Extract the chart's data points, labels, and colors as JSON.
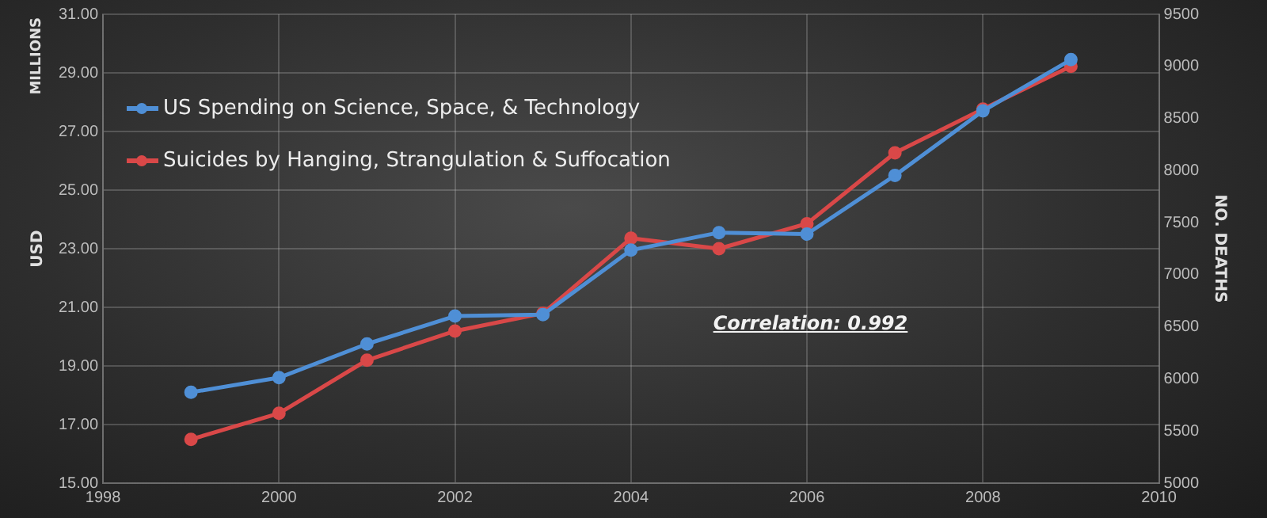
{
  "chart_data": {
    "type": "line",
    "ylabel": "USD",
    "y2label": "NO. DEATHS",
    "annotations": [
      "MILLIONS",
      "Correlation: 0.992"
    ],
    "x": [
      1999,
      2000,
      2001,
      2002,
      2003,
      2004,
      2005,
      2006,
      2007,
      2008,
      2009
    ],
    "series": [
      {
        "name": "US Spending on Science, Space, & Technology",
        "color": "#4f8fd6",
        "values": [
          18.1,
          18.6,
          19.75,
          20.7,
          20.75,
          22.95,
          23.55,
          23.5,
          25.5,
          27.7,
          29.45
        ]
      },
      {
        "name": "Suicides by Hanging, Strangulation & Suffocation",
        "color": "#d94848",
        "axis": "y2",
        "values": [
          5420,
          5670,
          6180,
          6460,
          6630,
          7350,
          7250,
          7490,
          8170,
          8590,
          9000
        ]
      }
    ],
    "xlim": [
      1998,
      2010
    ],
    "xticks": [
      1998,
      2000,
      2002,
      2004,
      2006,
      2008,
      2010
    ],
    "ylim": [
      15,
      31
    ],
    "yticks": [
      {
        "value": 15,
        "label": "15.00"
      },
      {
        "value": 17,
        "label": "17.00"
      },
      {
        "value": 19,
        "label": "19.00"
      },
      {
        "value": 21,
        "label": "21.00"
      },
      {
        "value": 23,
        "label": "23.00"
      },
      {
        "value": 25,
        "label": "25.00"
      },
      {
        "value": 27,
        "label": "27.00"
      },
      {
        "value": 29,
        "label": "29.00"
      },
      {
        "value": 31,
        "label": "31.00"
      }
    ],
    "y2lim": [
      5000,
      9500
    ],
    "y2ticks": [
      5000,
      5500,
      6000,
      6500,
      7000,
      7500,
      8000,
      8500,
      9000,
      9500
    ],
    "grid": true,
    "legend": "top left",
    "marker": "circle",
    "line_style": "solid"
  }
}
